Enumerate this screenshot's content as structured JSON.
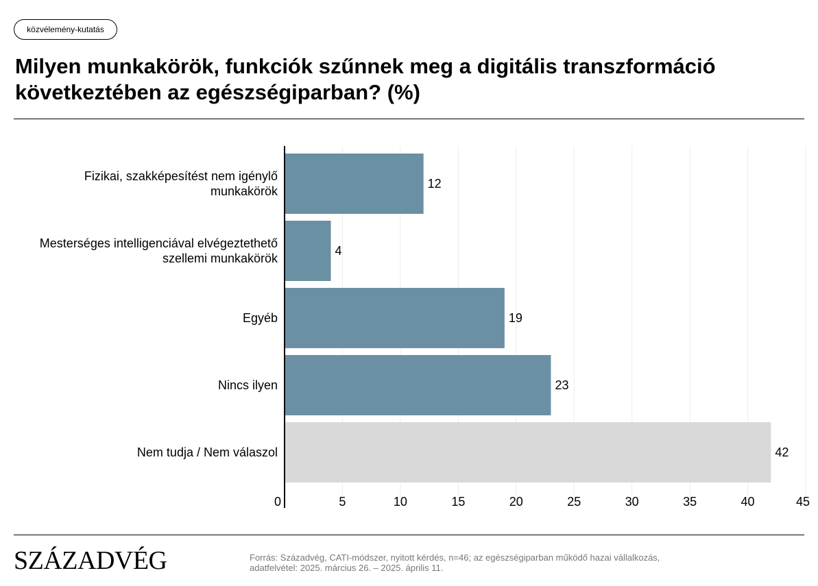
{
  "tag": "közvélemény-kutatás",
  "title_line1": "Milyen munkakörök, funkciók szűnnek meg a digitális transzformáció",
  "title_line2": "következtében az egészségiparban? (%)",
  "chart_data": {
    "type": "bar",
    "orientation": "horizontal",
    "categories": [
      [
        "Fizikai, szakképesítést nem igénylő",
        "munkakörök"
      ],
      [
        "Mesterséges intelligenciával elvégeztethető",
        "szellemi munkakörök"
      ],
      [
        "Egyéb"
      ],
      [
        "Nincs ilyen"
      ],
      [
        "Nem tudja / Nem válaszol"
      ]
    ],
    "values": [
      12,
      4,
      19,
      23,
      42
    ],
    "value_labels": [
      "12",
      "4",
      "19",
      "23",
      "42"
    ],
    "bar_colors": [
      "#6b90a4",
      "#6b90a4",
      "#6b90a4",
      "#6b90a4",
      "#d9d9d9"
    ],
    "xlim": [
      0,
      45
    ],
    "xticks": [
      0,
      5,
      10,
      15,
      20,
      25,
      30,
      35,
      40,
      45
    ],
    "grid": true
  },
  "footer": {
    "logo": "SZÁZADVÉG",
    "source_line1": "Forrás: Századvég, CATI-módszer, nyitott kérdés, n=46; az egészségiparban működő hazai vállalkozás,",
    "source_line2": "adatfelvétel: 2025. március 26. – 2025. április 11."
  }
}
